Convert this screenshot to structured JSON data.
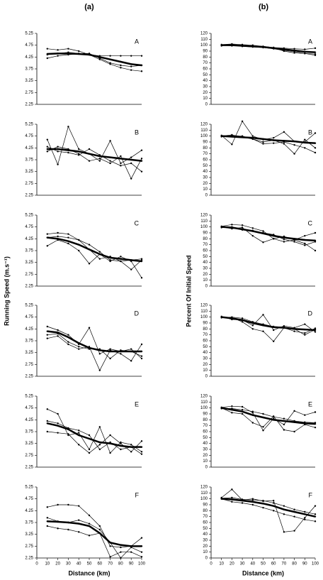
{
  "figure": {
    "column_titles": [
      "(a)",
      "(b)"
    ],
    "y_labels": [
      "Running Speed (m.s⁻¹)",
      "Percent Of Initial Speed"
    ]
  },
  "chart_data": [
    {
      "type": "line",
      "label": "A",
      "xlim": [
        0,
        100
      ],
      "ylim": [
        2.25,
        5.25
      ],
      "yticks": [
        2.25,
        2.75,
        3.25,
        3.75,
        4.25,
        4.75,
        5.25
      ],
      "x": [
        10,
        20,
        30,
        40,
        50,
        60,
        70,
        80,
        90,
        100
      ],
      "series": [
        {
          "color": "#000",
          "line_width": 2.5,
          "values": [
            4.38,
            4.4,
            4.4,
            4.38,
            4.35,
            4.25,
            4.15,
            4.05,
            3.95,
            3.9
          ]
        },
        {
          "color": "#000",
          "line_width": 0.7,
          "values": [
            4.6,
            4.55,
            4.6,
            4.5,
            4.35,
            4.3,
            4.3,
            4.3,
            4.3,
            4.3
          ]
        },
        {
          "color": "#000",
          "line_width": 0.7,
          "values": [
            4.2,
            4.3,
            4.35,
            4.38,
            4.35,
            4.15,
            3.95,
            3.8,
            3.7,
            3.65
          ]
        },
        {
          "color": "#000",
          "line_width": 0.7,
          "values": [
            4.35,
            4.4,
            4.45,
            4.4,
            4.4,
            4.2,
            4.0,
            3.9,
            3.85,
            3.9
          ]
        }
      ]
    },
    {
      "type": "line",
      "label": "B",
      "xlim": [
        0,
        100
      ],
      "ylim": [
        2.25,
        5.25
      ],
      "yticks": [
        2.25,
        2.75,
        3.25,
        3.75,
        4.25,
        4.75,
        5.25
      ],
      "x": [
        10,
        20,
        30,
        40,
        50,
        60,
        70,
        80,
        90,
        100
      ],
      "series": [
        {
          "color": "#000",
          "line_width": 2.5,
          "values": [
            4.2,
            4.2,
            4.15,
            4.1,
            4.0,
            3.9,
            3.85,
            3.8,
            3.75,
            3.7
          ]
        },
        {
          "color": "#000",
          "line_width": 0.7,
          "values": [
            4.6,
            3.55,
            5.15,
            4.2,
            4.0,
            3.7,
            4.55,
            3.6,
            3.85,
            4.15
          ]
        },
        {
          "color": "#000",
          "line_width": 0.7,
          "values": [
            4.1,
            4.3,
            4.2,
            4.0,
            3.7,
            3.8,
            3.6,
            3.9,
            2.95,
            3.8
          ]
        },
        {
          "color": "#000",
          "line_width": 0.7,
          "values": [
            4.3,
            4.1,
            4.05,
            3.95,
            4.2,
            3.95,
            3.7,
            3.5,
            3.6,
            3.25
          ]
        }
      ]
    },
    {
      "type": "line",
      "label": "C",
      "xlim": [
        0,
        100
      ],
      "ylim": [
        2.25,
        5.25
      ],
      "yticks": [
        2.25,
        2.75,
        3.25,
        3.75,
        4.25,
        4.75,
        5.25
      ],
      "x": [
        10,
        20,
        30,
        40,
        50,
        60,
        70,
        80,
        90,
        100
      ],
      "series": [
        {
          "color": "#000",
          "line_width": 2.5,
          "values": [
            4.3,
            4.25,
            4.15,
            4.0,
            3.8,
            3.6,
            3.45,
            3.4,
            3.35,
            3.3
          ]
        },
        {
          "color": "#000",
          "line_width": 0.7,
          "values": [
            4.45,
            4.5,
            4.45,
            4.2,
            3.8,
            3.4,
            3.5,
            3.3,
            3.35,
            3.4
          ]
        },
        {
          "color": "#000",
          "line_width": 0.7,
          "values": [
            3.95,
            4.2,
            4.05,
            3.75,
            3.2,
            3.6,
            3.3,
            3.5,
            3.3,
            2.6
          ]
        },
        {
          "color": "#000",
          "line_width": 0.7,
          "values": [
            4.3,
            4.35,
            4.3,
            4.2,
            4.0,
            3.7,
            3.35,
            3.3,
            2.95,
            3.35
          ]
        }
      ]
    },
    {
      "type": "line",
      "label": "D",
      "xlim": [
        0,
        100
      ],
      "ylim": [
        2.25,
        5.25
      ],
      "yticks": [
        2.25,
        2.75,
        3.25,
        3.75,
        4.25,
        4.75,
        5.25
      ],
      "x": [
        10,
        20,
        30,
        40,
        50,
        60,
        70,
        80,
        90,
        100
      ],
      "series": [
        {
          "color": "#000",
          "line_width": 2.5,
          "values": [
            4.15,
            4.1,
            3.9,
            3.65,
            3.45,
            3.35,
            3.3,
            3.3,
            3.3,
            3.3
          ]
        },
        {
          "color": "#000",
          "line_width": 0.7,
          "values": [
            4.35,
            4.2,
            4.0,
            3.6,
            4.3,
            3.2,
            3.4,
            3.3,
            3.4,
            3.0
          ]
        },
        {
          "color": "#000",
          "line_width": 0.7,
          "values": [
            3.85,
            3.95,
            3.6,
            3.4,
            3.5,
            2.5,
            3.35,
            3.2,
            2.9,
            3.6
          ]
        },
        {
          "color": "#000",
          "line_width": 0.7,
          "values": [
            4.0,
            4.05,
            3.7,
            3.5,
            3.4,
            3.4,
            3.0,
            3.35,
            3.3,
            3.1
          ]
        }
      ]
    },
    {
      "type": "line",
      "label": "E",
      "xlim": [
        0,
        100
      ],
      "ylim": [
        2.25,
        5.25
      ],
      "yticks": [
        2.25,
        2.75,
        3.25,
        3.75,
        4.25,
        4.75,
        5.25
      ],
      "x": [
        10,
        20,
        30,
        40,
        50,
        60,
        70,
        80,
        90,
        100
      ],
      "series": [
        {
          "color": "#000",
          "line_width": 2.5,
          "values": [
            4.1,
            4.0,
            3.85,
            3.6,
            3.45,
            3.3,
            3.25,
            3.15,
            3.1,
            3.1
          ]
        },
        {
          "color": "#000",
          "line_width": 0.7,
          "values": [
            4.7,
            4.5,
            3.6,
            3.7,
            3.0,
            3.95,
            2.85,
            3.3,
            3.2,
            2.9
          ]
        },
        {
          "color": "#000",
          "line_width": 0.7,
          "values": [
            3.75,
            3.7,
            3.65,
            3.2,
            2.85,
            3.2,
            3.6,
            3.25,
            2.9,
            3.35
          ]
        },
        {
          "color": "#000",
          "line_width": 0.7,
          "values": [
            4.2,
            4.1,
            3.9,
            3.8,
            3.6,
            3.0,
            3.3,
            3.0,
            3.1,
            2.8
          ]
        }
      ]
    },
    {
      "type": "line",
      "label": "F",
      "xlim": [
        0,
        100
      ],
      "ylim": [
        2.25,
        5.25
      ],
      "yticks": [
        2.25,
        2.75,
        3.25,
        3.75,
        4.25,
        4.75,
        5.25
      ],
      "xticks": [
        0,
        10,
        20,
        30,
        40,
        50,
        60,
        70,
        80,
        90,
        100
      ],
      "x_label": "Distance (km)",
      "x": [
        10,
        20,
        30,
        40,
        50,
        60,
        70,
        80,
        90,
        100
      ],
      "series": [
        {
          "color": "#000",
          "line_width": 2.5,
          "values": [
            3.8,
            3.78,
            3.75,
            3.7,
            3.6,
            3.3,
            2.9,
            2.8,
            2.75,
            2.75
          ]
        },
        {
          "color": "#000",
          "line_width": 0.7,
          "values": [
            4.4,
            4.5,
            4.5,
            4.45,
            4.05,
            3.6,
            2.75,
            2.7,
            2.75,
            3.1
          ]
        },
        {
          "color": "#000",
          "line_width": 0.7,
          "values": [
            3.6,
            3.5,
            3.45,
            3.35,
            3.2,
            3.3,
            2.3,
            2.5,
            2.5,
            2.3
          ]
        },
        {
          "color": "#000",
          "line_width": 0.7,
          "values": [
            3.95,
            3.8,
            3.75,
            3.85,
            3.7,
            3.45,
            2.9,
            2.25,
            2.7,
            2.5
          ]
        }
      ]
    },
    {
      "type": "line",
      "label": "A",
      "xlim": [
        0,
        100
      ],
      "ylim": [
        0,
        120
      ],
      "yticks": [
        0,
        10,
        20,
        30,
        40,
        50,
        60,
        70,
        80,
        90,
        100,
        110,
        120
      ],
      "x": [
        10,
        20,
        30,
        40,
        50,
        60,
        70,
        80,
        90,
        100
      ],
      "series": [
        {
          "color": "#000",
          "line_width": 2.5,
          "values": [
            100,
            100,
            99,
            98,
            97,
            95,
            93,
            91,
            89,
            88
          ]
        },
        {
          "color": "#000",
          "line_width": 0.7,
          "values": [
            101,
            102,
            101,
            100,
            98,
            96,
            90,
            87,
            86,
            85
          ]
        },
        {
          "color": "#000",
          "line_width": 0.7,
          "values": [
            100,
            99,
            100,
            98,
            97,
            96,
            95,
            94,
            93,
            95
          ]
        },
        {
          "color": "#000",
          "line_width": 0.7,
          "values": [
            99,
            101,
            98,
            97,
            96,
            94,
            91,
            89,
            86,
            83
          ]
        }
      ]
    },
    {
      "type": "line",
      "label": "B",
      "xlim": [
        0,
        100
      ],
      "ylim": [
        0,
        120
      ],
      "yticks": [
        0,
        10,
        20,
        30,
        40,
        50,
        60,
        70,
        80,
        90,
        100,
        110,
        120
      ],
      "x": [
        10,
        20,
        30,
        40,
        50,
        60,
        70,
        80,
        90,
        100
      ],
      "series": [
        {
          "color": "#000",
          "line_width": 2.5,
          "values": [
            100,
            99,
            98,
            97,
            95,
            93,
            92,
            91,
            89,
            88
          ]
        },
        {
          "color": "#000",
          "line_width": 0.7,
          "values": [
            101,
            86,
            125,
            100,
            94,
            97,
            107,
            91,
            90,
            105
          ]
        },
        {
          "color": "#000",
          "line_width": 0.7,
          "values": [
            100,
            102,
            98,
            95,
            90,
            93,
            87,
            70,
            94,
            80
          ]
        },
        {
          "color": "#000",
          "line_width": 0.7,
          "values": [
            99,
            101,
            100,
            95,
            87,
            88,
            90,
            85,
            80,
            72
          ]
        }
      ]
    },
    {
      "type": "line",
      "label": "C",
      "xlim": [
        0,
        100
      ],
      "ylim": [
        0,
        120
      ],
      "yticks": [
        0,
        10,
        20,
        30,
        40,
        50,
        60,
        70,
        80,
        90,
        100,
        110,
        120
      ],
      "x": [
        10,
        20,
        30,
        40,
        50,
        60,
        70,
        80,
        90,
        100
      ],
      "series": [
        {
          "color": "#000",
          "line_width": 2.5,
          "values": [
            100,
            99,
            96,
            93,
            89,
            85,
            82,
            80,
            78,
            77
          ]
        },
        {
          "color": "#000",
          "line_width": 0.7,
          "values": [
            101,
            104,
            103,
            98,
            93,
            80,
            84,
            78,
            85,
            90
          ]
        },
        {
          "color": "#000",
          "line_width": 0.7,
          "values": [
            100,
            97,
            99,
            85,
            74,
            80,
            75,
            78,
            72,
            60
          ]
        },
        {
          "color": "#000",
          "line_width": 0.7,
          "values": [
            99,
            100,
            95,
            94,
            90,
            87,
            79,
            75,
            69,
            75
          ]
        }
      ]
    },
    {
      "type": "line",
      "label": "D",
      "xlim": [
        0,
        100
      ],
      "ylim": [
        0,
        120
      ],
      "yticks": [
        0,
        10,
        20,
        30,
        40,
        50,
        60,
        70,
        80,
        90,
        100,
        110,
        120
      ],
      "x": [
        10,
        20,
        30,
        40,
        50,
        60,
        70,
        80,
        90,
        100
      ],
      "series": [
        {
          "color": "#000",
          "line_width": 2.5,
          "values": [
            100,
            98,
            95,
            90,
            86,
            83,
            82,
            80,
            79,
            78
          ]
        },
        {
          "color": "#000",
          "line_width": 0.7,
          "values": [
            101,
            96,
            95,
            86,
            104,
            78,
            85,
            82,
            88,
            75
          ]
        },
        {
          "color": "#000",
          "line_width": 0.7,
          "values": [
            100,
            99,
            92,
            80,
            76,
            59,
            82,
            76,
            73,
            81
          ]
        },
        {
          "color": "#000",
          "line_width": 0.7,
          "values": [
            99,
            100,
            98,
            92,
            88,
            84,
            83,
            80,
            70,
            79
          ]
        }
      ]
    },
    {
      "type": "line",
      "label": "E",
      "xlim": [
        0,
        100
      ],
      "ylim": [
        0,
        120
      ],
      "yticks": [
        0,
        10,
        20,
        30,
        40,
        50,
        60,
        70,
        80,
        90,
        100,
        110,
        120
      ],
      "x": [
        10,
        20,
        30,
        40,
        50,
        60,
        70,
        80,
        90,
        100
      ],
      "series": [
        {
          "color": "#000",
          "line_width": 2.5,
          "values": [
            100,
            97,
            94,
            88,
            84,
            80,
            78,
            76,
            74,
            73
          ]
        },
        {
          "color": "#000",
          "line_width": 0.7,
          "values": [
            101,
            103,
            102,
            92,
            62,
            82,
            72,
            95,
            88,
            93
          ]
        },
        {
          "color": "#000",
          "line_width": 0.7,
          "values": [
            100,
            92,
            90,
            75,
            68,
            86,
            63,
            60,
            72,
            67
          ]
        },
        {
          "color": "#000",
          "line_width": 0.7,
          "values": [
            99,
            99,
            97,
            94,
            90,
            85,
            82,
            78,
            76,
            75
          ]
        }
      ]
    },
    {
      "type": "line",
      "label": "F",
      "xlim": [
        0,
        100
      ],
      "ylim": [
        0,
        120
      ],
      "yticks": [
        0,
        10,
        20,
        30,
        40,
        50,
        60,
        70,
        80,
        90,
        100,
        110,
        120
      ],
      "xticks": [
        0,
        10,
        20,
        30,
        40,
        50,
        60,
        70,
        80,
        90,
        100
      ],
      "x_label": "Distance (km)",
      "x": [
        10,
        20,
        30,
        40,
        50,
        60,
        70,
        80,
        90,
        100
      ],
      "series": [
        {
          "color": "#000",
          "line_width": 2.5,
          "values": [
            100,
            99,
            97,
            95,
            92,
            88,
            82,
            78,
            74,
            70
          ]
        },
        {
          "color": "#000",
          "line_width": 0.7,
          "values": [
            102,
            116,
            98,
            100,
            96,
            97,
            44,
            46,
            68,
            88
          ]
        },
        {
          "color": "#000",
          "line_width": 0.7,
          "values": [
            100,
            95,
            93,
            90,
            85,
            80,
            74,
            70,
            65,
            62
          ]
        },
        {
          "color": "#000",
          "line_width": 0.7,
          "values": [
            101,
            102,
            99,
            98,
            97,
            93,
            88,
            82,
            78,
            74
          ]
        }
      ]
    }
  ]
}
